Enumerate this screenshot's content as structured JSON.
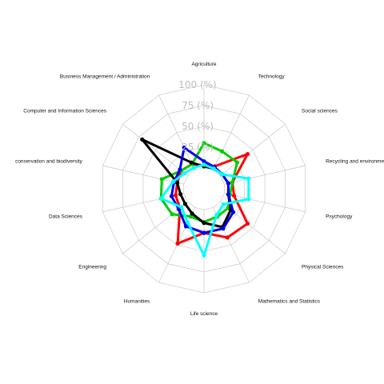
{
  "chart_data": {
    "type": "radar",
    "title": "",
    "axes": [
      "Agriculture",
      "Technology",
      "Social sciences",
      "Recycling and environmental managem",
      "Psychology",
      "Physical Sciences",
      "Mathematics and Statistics",
      "Life science",
      "Humanities",
      "Engineering",
      "Data Sciences",
      "conservation and biodiversity",
      "Computer and Information Sciences",
      "Business Management / Administration"
    ],
    "ticks": [
      "25 (%)",
      "50 (%)",
      "75 (%)",
      "100 (%)"
    ],
    "tick_values": [
      25,
      50,
      75,
      100
    ],
    "range": [
      0,
      100
    ],
    "grid": true,
    "series": [
      {
        "color": "#ff0000",
        "values": [
          3,
          5,
          42,
          10,
          12,
          42,
          40,
          28,
          48,
          12,
          10,
          8,
          10,
          8
        ]
      },
      {
        "color": "#00cc00",
        "values": [
          30,
          25,
          26,
          10,
          7,
          12,
          12,
          15,
          12,
          24,
          28,
          27,
          10,
          8
        ]
      },
      {
        "color": "#000000",
        "values": [
          2,
          2,
          3,
          5,
          5,
          16,
          26,
          16,
          8,
          4,
          4,
          8,
          70,
          10
        ]
      },
      {
        "color": "#0000ee",
        "values": [
          8,
          4,
          3,
          5,
          5,
          20,
          28,
          28,
          25,
          14,
          15,
          12,
          12,
          30
        ]
      },
      {
        "color": "#00ffff",
        "values": [
          4,
          2,
          3,
          30,
          30,
          5,
          10,
          55,
          20,
          10,
          28,
          13,
          5,
          3
        ]
      }
    ]
  }
}
